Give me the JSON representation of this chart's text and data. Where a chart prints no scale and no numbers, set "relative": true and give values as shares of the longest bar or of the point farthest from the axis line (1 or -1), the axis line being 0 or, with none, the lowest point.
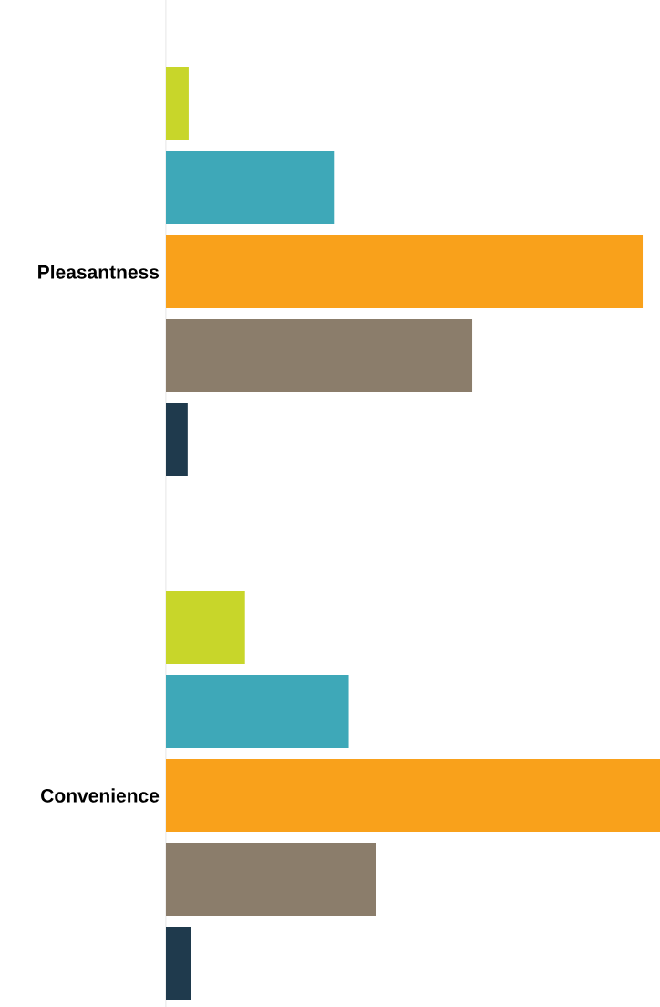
{
  "chart_data": {
    "type": "bar",
    "orientation": "horizontal",
    "relative": true,
    "categories": [
      "Pleasantness",
      "Convenience"
    ],
    "series": [
      {
        "color": "#c8d62a",
        "values": [
          0.046,
          0.16
        ]
      },
      {
        "color": "#3ea8b8",
        "values": [
          0.34,
          0.37
        ]
      },
      {
        "color": "#f9a11b",
        "values": [
          0.965,
          1
        ]
      },
      {
        "color": "#8b7d6b",
        "values": [
          0.62,
          0.425
        ]
      },
      {
        "color": "#1f3a4d",
        "values": [
          0.044,
          0.05
        ]
      }
    ]
  }
}
